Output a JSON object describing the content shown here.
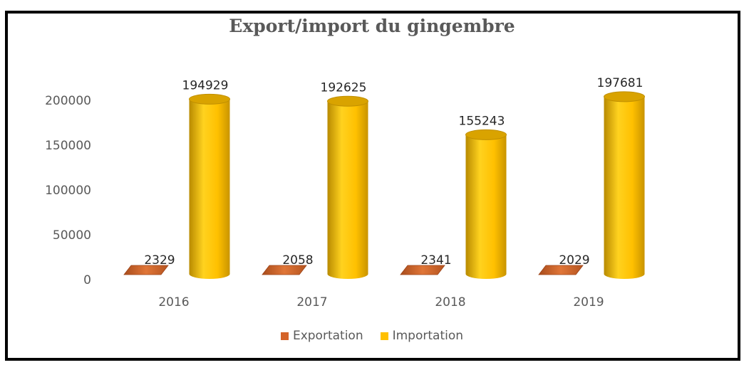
{
  "chart_data": {
    "type": "bar",
    "title": "Export/import du gingembre",
    "categories": [
      "2016",
      "2017",
      "2018",
      "2019"
    ],
    "series": [
      {
        "name": "Exportation",
        "color": "#d4642a",
        "values": [
          2329,
          2058,
          2341,
          2029
        ]
      },
      {
        "name": "Importation",
        "color": "#ffc000",
        "values": [
          194929,
          192625,
          155243,
          197681
        ]
      }
    ],
    "yticks": [
      "0",
      "50000",
      "100000",
      "150000",
      "200000"
    ],
    "ylim": [
      0,
      200000
    ],
    "grid": false,
    "legend_position": "bottom",
    "style": "3d-cylinder"
  }
}
